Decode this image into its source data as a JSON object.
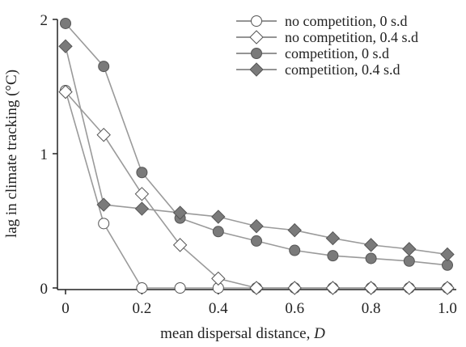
{
  "chart_data": {
    "type": "line",
    "title": "",
    "xlabel": "mean dispersal distance, ",
    "xlabel_var": "D",
    "ylabel": "lag in climate tracking (°C)",
    "xlim": [
      0,
      1.0
    ],
    "ylim": [
      0,
      2
    ],
    "xticks": [
      "0",
      "0.2",
      "0.4",
      "0.6",
      "0.8",
      "1.0"
    ],
    "xtick_values": [
      0,
      0.2,
      0.4,
      0.6,
      0.8,
      1.0
    ],
    "yticks": [
      "0",
      "1",
      "2"
    ],
    "ytick_values": [
      0,
      1,
      2
    ],
    "grid": false,
    "legend_position": "top-right",
    "x": [
      0,
      0.1,
      0.2,
      0.3,
      0.4,
      0.5,
      0.6,
      0.7,
      0.8,
      0.9,
      1.0
    ],
    "series": [
      {
        "name": "no competition, 0 s.d",
        "marker": "circle",
        "fill": "#ffffff",
        "values": [
          1.47,
          0.48,
          0.0,
          0.0,
          0.0,
          0.0,
          0.0,
          0.0,
          0.0,
          0.0,
          0.0
        ]
      },
      {
        "name": "no competition, 0.4 s.d",
        "marker": "diamond",
        "fill": "#ffffff",
        "values": [
          1.46,
          1.14,
          0.7,
          0.32,
          0.07,
          0.0,
          0.0,
          0.0,
          0.0,
          0.0,
          0.0
        ]
      },
      {
        "name": "competition, 0 s.d",
        "marker": "circle",
        "fill": "#7a7a7a",
        "values": [
          1.97,
          1.65,
          0.86,
          0.52,
          0.42,
          0.35,
          0.28,
          0.24,
          0.22,
          0.2,
          0.17
        ]
      },
      {
        "name": "competition, 0.4 s.d",
        "marker": "diamond",
        "fill": "#7a7a7a",
        "values": [
          1.8,
          0.62,
          0.59,
          0.56,
          0.53,
          0.46,
          0.43,
          0.37,
          0.32,
          0.29,
          0.25
        ]
      }
    ]
  },
  "colors": {
    "line": "#9a9a9a",
    "marker_stroke": "#555555",
    "axis": "#222222"
  }
}
